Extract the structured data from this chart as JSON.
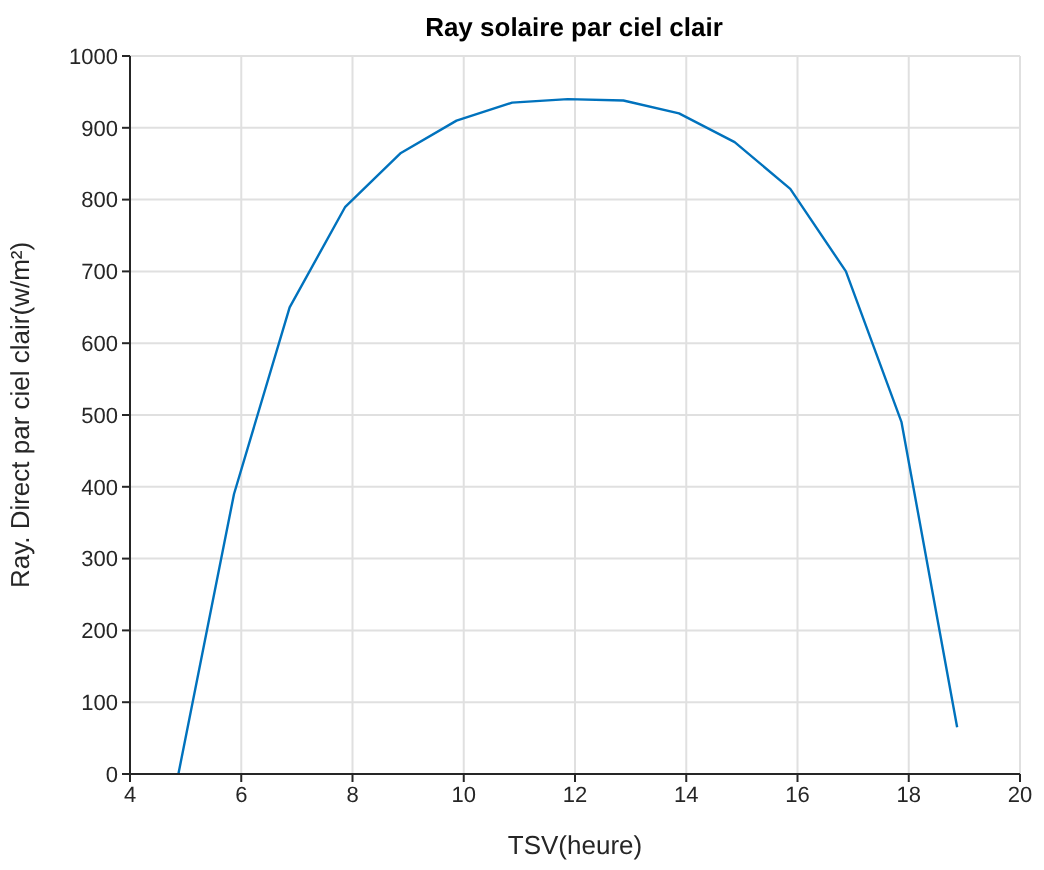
{
  "chart_data": {
    "type": "line",
    "title": "Ray solaire par ciel clair",
    "xlabel": "TSV(heure)",
    "ylabel": "Ray. Direct par ciel clair(w/m²)",
    "x": [
      4.87,
      5.87,
      6.87,
      7.87,
      8.87,
      9.87,
      10.87,
      11.87,
      12.87,
      13.87,
      14.87,
      15.87,
      16.87,
      17.87,
      18.87
    ],
    "series": [
      {
        "color": "#0072bd",
        "values": [
          0,
          390,
          650,
          790,
          865,
          910,
          935,
          940,
          938,
          920,
          880,
          815,
          700,
          490,
          65
        ]
      }
    ],
    "xlim": [
      4,
      20
    ],
    "xticks": [
      4,
      6,
      8,
      10,
      12,
      14,
      16,
      18,
      20
    ],
    "ylim": [
      0,
      1000
    ],
    "yticks": [
      0,
      100,
      200,
      300,
      400,
      500,
      600,
      700,
      800,
      900,
      1000
    ],
    "grid": true,
    "legend": false,
    "marker": "none",
    "line_style": "solid"
  }
}
